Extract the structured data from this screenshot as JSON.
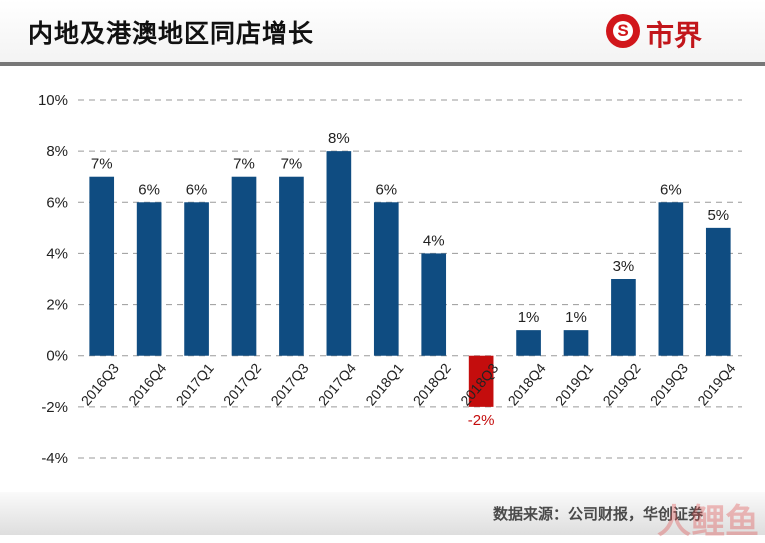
{
  "header": {
    "title": "内地及港澳地区同店增长",
    "logo_text": "市界",
    "logo_mark": "S"
  },
  "footer": {
    "source": "数据来源：公司财报，华创证券",
    "watermark": "人鲤鱼"
  },
  "colors": {
    "bar_positive": "#0f4c81",
    "bar_negative": "#c40d0d",
    "label_negative": "#c40d0d",
    "grid": "#9a9a9a"
  },
  "chart_data": {
    "type": "bar",
    "categories": [
      "2016Q3",
      "2016Q4",
      "2017Q1",
      "2017Q2",
      "2017Q3",
      "2017Q4",
      "2018Q1",
      "2018Q2",
      "2018Q3",
      "2018Q4",
      "2019Q1",
      "2019Q2",
      "2019Q3",
      "2019Q4"
    ],
    "values": [
      7,
      6,
      6,
      7,
      7,
      8,
      6,
      4,
      -2,
      1,
      1,
      3,
      6,
      5
    ],
    "data_labels": [
      "7%",
      "6%",
      "6%",
      "7%",
      "7%",
      "8%",
      "6%",
      "4%",
      "-2%",
      "1%",
      "1%",
      "3%",
      "6%",
      "5%"
    ],
    "unit": "%",
    "ylim": [
      -4,
      10
    ],
    "yticks": [
      -4,
      -2,
      0,
      2,
      4,
      6,
      8,
      10
    ],
    "ytick_labels": [
      "-4%",
      "-2%",
      "0%",
      "2%",
      "4%",
      "6%",
      "8%",
      "10%"
    ],
    "grid": "dashed horizontal",
    "legend": "none"
  }
}
